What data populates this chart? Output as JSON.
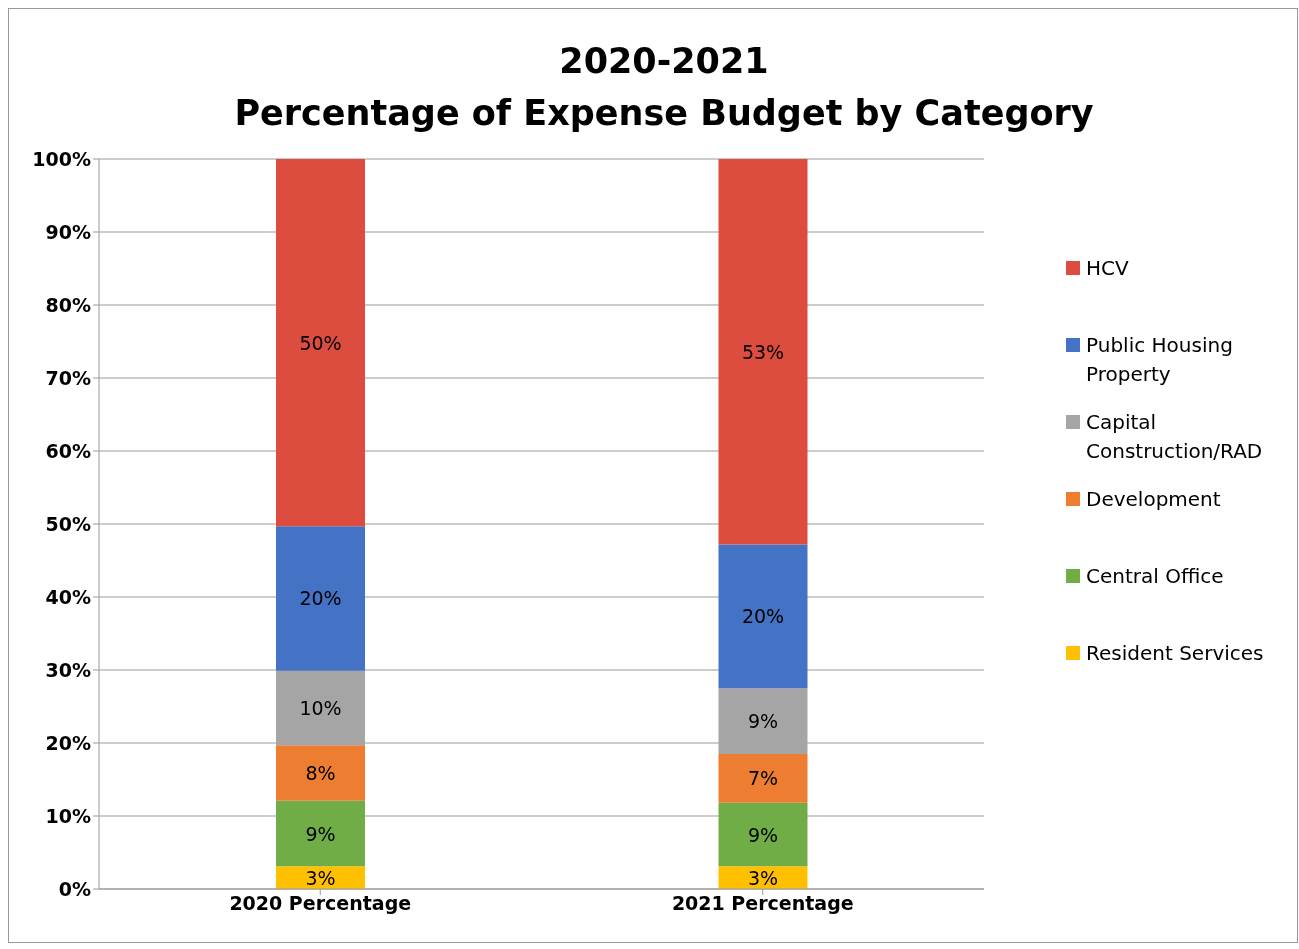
{
  "chart_data": {
    "type": "bar",
    "stacked": true,
    "title": "2020-2021\nPercentage of Expense Budget by Category",
    "categories": [
      "2020 Percentage",
      "2021 Percentage"
    ],
    "series": [
      {
        "name": "Resident Services",
        "color": "#ffc000",
        "values": [
          3.1,
          3.1
        ],
        "value_labels": [
          "3%",
          "3%"
        ]
      },
      {
        "name": "Central Office",
        "color": "#70ad47",
        "values": [
          9.0,
          8.7
        ],
        "value_labels": [
          "9%",
          "9%"
        ]
      },
      {
        "name": "Development",
        "color": "#ed7d31",
        "values": [
          7.6,
          6.7
        ],
        "value_labels": [
          "8%",
          "7%"
        ]
      },
      {
        "name": "Capital Construction/RAD",
        "color": "#a5a5a5",
        "values": [
          10.2,
          9.0
        ],
        "value_labels": [
          "10%",
          "9%"
        ]
      },
      {
        "name": "Public Housing Property",
        "color": "#4472c4",
        "values": [
          19.8,
          19.7
        ],
        "value_labels": [
          "20%",
          "20%"
        ]
      },
      {
        "name": "HCV",
        "color": "#dd4d3f",
        "values": [
          50.3,
          52.8
        ],
        "value_labels": [
          "50%",
          "53%"
        ]
      }
    ],
    "ylim": [
      0,
      100
    ],
    "yticks": [
      {
        "value": 0,
        "label": "0%"
      },
      {
        "value": 10,
        "label": "10%"
      },
      {
        "value": 20,
        "label": "20%"
      },
      {
        "value": 30,
        "label": "30%"
      },
      {
        "value": 40,
        "label": "40%"
      },
      {
        "value": 50,
        "label": "50%"
      },
      {
        "value": 60,
        "label": "60%"
      },
      {
        "value": 70,
        "label": "70%"
      },
      {
        "value": 80,
        "label": "80%"
      },
      {
        "value": 90,
        "label": "90%"
      },
      {
        "value": 100,
        "label": "100%"
      }
    ],
    "grid": "y",
    "legend": "right"
  }
}
